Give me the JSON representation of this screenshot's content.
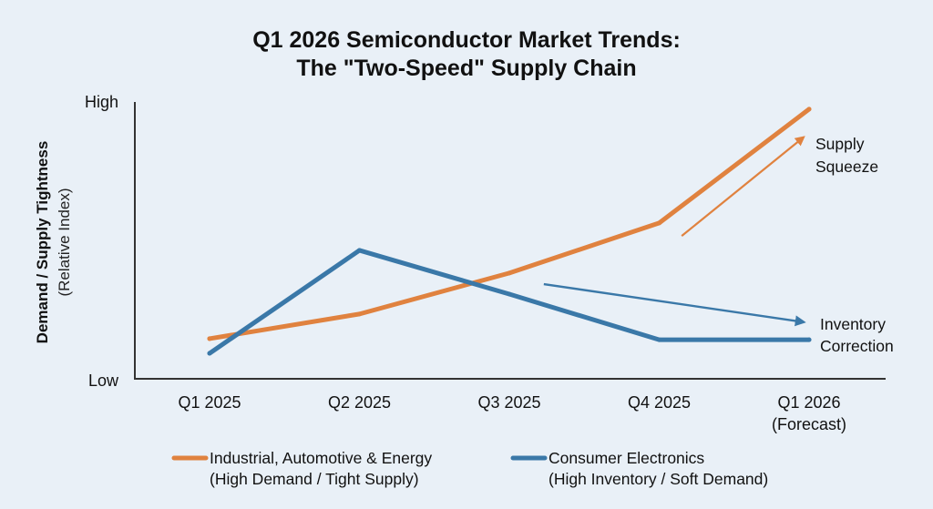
{
  "chart_data": {
    "type": "line",
    "title": [
      "Q1 2026 Semiconductor Market Trends:",
      "The \"Two-Speed\" Supply Chain"
    ],
    "ylabel": "Demand / Supply Tightness",
    "ylabel_sub": "(Relative Index)",
    "xlabel": "",
    "ylim": [
      0,
      100
    ],
    "y_tick_labels": {
      "low": "Low",
      "high": "High"
    },
    "categories": [
      "Q1 2025",
      "Q2 2025",
      "Q3 2025",
      "Q4 2025",
      "Q1 2026"
    ],
    "category_sublabels": [
      "",
      "",
      "",
      "",
      "(Forecast)"
    ],
    "grid": false,
    "legend_position": "bottom",
    "series": [
      {
        "name": "Industrial, Automotive & Energy",
        "subtitle": "(High Demand / Tight Supply)",
        "color": "#e0823f",
        "values": [
          14.5,
          23.4,
          38.2,
          56.3,
          97.4
        ]
      },
      {
        "name": "Consumer Electronics",
        "subtitle": "(High Inventory / Soft Demand)",
        "color": "#3a78a8",
        "values": [
          9.2,
          46.4,
          30.6,
          14.1,
          14.1
        ]
      }
    ],
    "annotations": [
      {
        "text": [
          "Supply",
          "Squeeze"
        ],
        "series": 0,
        "arrow_from": {
          "x": 3.15,
          "y": 51.6
        },
        "arrow_to": {
          "x": 3.99,
          "y": 88.5
        },
        "color": "#e0823f"
      },
      {
        "text": [
          "Inventory",
          "Correction"
        ],
        "series": 1,
        "arrow_from": {
          "x": 2.23,
          "y": 34.2
        },
        "arrow_to": {
          "x": 4.0,
          "y": 20.1
        },
        "color": "#3a78a8"
      }
    ]
  }
}
